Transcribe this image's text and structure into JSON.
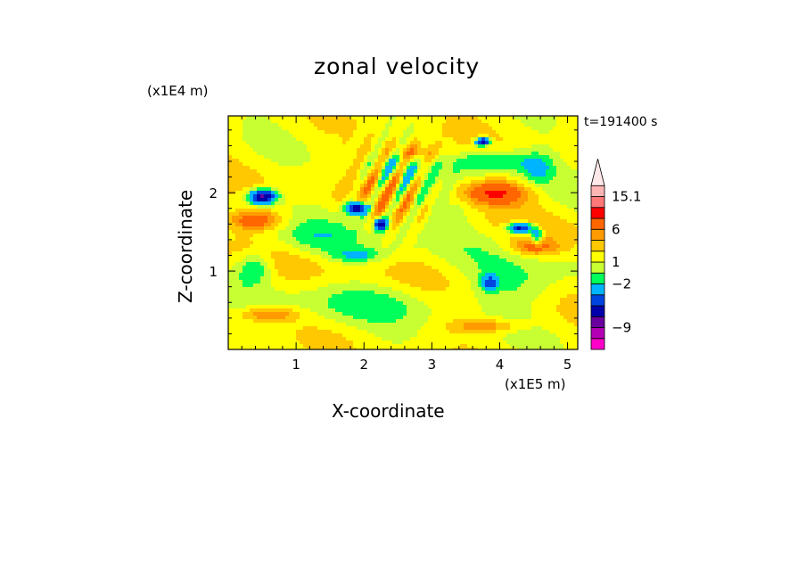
{
  "chart_data": {
    "type": "heatmap",
    "title": "zonal velocity",
    "xlabel": "X-coordinate",
    "ylabel": "Z-coordinate",
    "x_unit": "(x1E5 m)",
    "y_unit": "(x1E4 m)",
    "time_label": "t=191400 s",
    "x_ticks": [
      1,
      2,
      3,
      4,
      5
    ],
    "y_ticks": [
      1,
      2
    ],
    "xlim": [
      0,
      5.15
    ],
    "ylim": [
      0,
      2.98
    ],
    "colorbar": {
      "labels": [
        15.1,
        6,
        1,
        -2,
        -9
      ],
      "levels": [
        {
          "color": "#ff00c8"
        },
        {
          "color": "#b400b4"
        },
        {
          "color": "#6a009e"
        },
        {
          "color": "#0000aa"
        },
        {
          "color": "#0044e0"
        },
        {
          "color": "#00b4ff"
        },
        {
          "color": "#00ff5a"
        },
        {
          "color": "#c8ff32"
        },
        {
          "color": "#ffff00"
        },
        {
          "color": "#ffc800"
        },
        {
          "color": "#ff9b00"
        },
        {
          "color": "#ff6600"
        },
        {
          "color": "#ff0000"
        },
        {
          "color": "#ff7878"
        },
        {
          "color": "#ffb4b4"
        },
        {
          "color": "#ffe8e8"
        }
      ]
    },
    "features": [
      {
        "x": 0.5,
        "z": 1.95,
        "sx": 0.2,
        "sz": 0.09,
        "v": -9
      },
      {
        "x": 1.9,
        "z": 1.8,
        "sx": 0.15,
        "sz": 0.08,
        "v": -9
      },
      {
        "x": 3.75,
        "z": 2.65,
        "sx": 0.1,
        "sz": 0.05,
        "v": -9
      },
      {
        "x": 4.55,
        "z": 1.45,
        "sx": 0.08,
        "sz": 0.1,
        "v": -5
      },
      {
        "x": 3.85,
        "z": 0.85,
        "sx": 0.12,
        "sz": 0.09,
        "v": -5
      },
      {
        "x": 2.25,
        "z": 1.6,
        "sx": 0.1,
        "sz": 0.07,
        "v": -8
      },
      {
        "x": 4.3,
        "z": 1.55,
        "sx": 0.18,
        "sz": 0.07,
        "v": -8
      },
      {
        "x": 2.45,
        "z": 2.45,
        "sx": 0.3,
        "sz": 0.15,
        "v": -3
      },
      {
        "x": 3.9,
        "z": 2.4,
        "sx": 0.6,
        "sz": 0.15,
        "v": -3
      },
      {
        "x": 0.4,
        "z": 1.05,
        "sx": 0.25,
        "sz": 0.2,
        "v": -3
      },
      {
        "x": 1.9,
        "z": 1.2,
        "sx": 0.4,
        "sz": 0.1,
        "v": -2.5
      },
      {
        "x": 4.55,
        "z": 2.3,
        "sx": 0.25,
        "sz": 0.2,
        "v": -2.5
      },
      {
        "x": 3.9,
        "z": 2.0,
        "sx": 0.5,
        "sz": 0.15,
        "v": 5
      },
      {
        "x": 0.4,
        "z": 1.65,
        "sx": 0.4,
        "sz": 0.12,
        "v": 4
      },
      {
        "x": 2.6,
        "z": 2.5,
        "sx": 0.45,
        "sz": 0.13,
        "v": 4
      },
      {
        "x": 0.6,
        "z": 0.45,
        "sx": 0.4,
        "sz": 0.09,
        "v": 3
      },
      {
        "x": 4.5,
        "z": 1.3,
        "sx": 0.35,
        "sz": 0.1,
        "v": 3
      },
      {
        "x": 3.8,
        "z": 0.3,
        "sx": 0.5,
        "sz": 0.08,
        "v": 2.5
      },
      {
        "x": 2.0,
        "z": 0.6,
        "sx": 1.2,
        "sz": 0.25,
        "v": -1.5
      },
      {
        "x": 4.2,
        "z": 0.8,
        "sx": 0.8,
        "sz": 0.3,
        "v": -1.5
      },
      {
        "x": 1.2,
        "z": 1.4,
        "sx": 0.6,
        "sz": 0.2,
        "v": -1.5
      },
      {
        "x": 3.2,
        "z": 1.8,
        "sx": 0.5,
        "sz": 0.3,
        "v": -1.3
      }
    ]
  }
}
